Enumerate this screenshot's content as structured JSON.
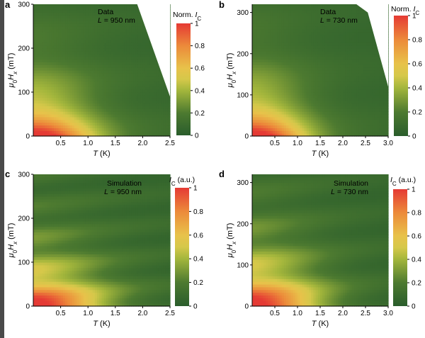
{
  "chart_data": [
    {
      "type": "heatmap",
      "panel": "a",
      "annotation": [
        "Data",
        "L = 950 nm"
      ],
      "xlabel": "T (K)",
      "ylabel": "μ0Hx (mT)",
      "xlim": [
        0,
        2.5
      ],
      "ylim": [
        0,
        300
      ],
      "xticks": [
        "0.5",
        "1.0",
        "1.5",
        "2.0",
        "2.5"
      ],
      "yticks": [
        "0",
        "100",
        "200",
        "300"
      ],
      "colorbar": {
        "title": "Norm. IC",
        "range": [
          0,
          1
        ],
        "ticks": [
          "0",
          "0.2",
          "0.4",
          "0.6",
          "0.8",
          "1"
        ]
      },
      "model": {
        "t_scale": 1.1,
        "h_scale": 80,
        "fringe_period": 120,
        "fringe_amp": 0.15
      },
      "missing_region": [
        [
          1.9,
          300
        ],
        [
          2.5,
          90
        ],
        [
          2.5,
          300
        ]
      ]
    },
    {
      "type": "heatmap",
      "panel": "b",
      "annotation": [
        "Data",
        "L = 730 nm"
      ],
      "xlabel": "T (K)",
      "ylabel": "μ0Hx (mT)",
      "xlim": [
        0,
        3.0
      ],
      "ylim": [
        0,
        320
      ],
      "xticks": [
        "0.5",
        "1.0",
        "1.5",
        "2.0",
        "2.5",
        "3.0"
      ],
      "yticks": [
        "0",
        "100",
        "200",
        "300"
      ],
      "colorbar": {
        "title": "Norm. IC",
        "range": [
          0,
          1
        ],
        "ticks": [
          "0",
          "0.2",
          "0.4",
          "0.6",
          "0.8",
          "1"
        ]
      },
      "model": {
        "t_scale": 1.2,
        "h_scale": 85,
        "fringe_period": 140,
        "fringe_amp": 0.15
      },
      "missing_region": [
        [
          2.3,
          320
        ],
        [
          2.55,
          300
        ],
        [
          3.0,
          120
        ],
        [
          3.0,
          320
        ]
      ]
    },
    {
      "type": "heatmap",
      "panel": "c",
      "annotation": [
        "Simulation",
        "L = 950 nm"
      ],
      "xlabel": "T (K)",
      "ylabel": "μ0Hx (mT)",
      "xlim": [
        0,
        2.5
      ],
      "ylim": [
        0,
        300
      ],
      "xticks": [
        "0.5",
        "1.0",
        "1.5",
        "2.0",
        "2.5"
      ],
      "yticks": [
        "0",
        "100",
        "200",
        "300"
      ],
      "colorbar": {
        "title": "IC (a.u.)",
        "range": [
          0,
          1
        ],
        "ticks": [
          "0",
          "0.2",
          "0.4",
          "0.6",
          "0.8",
          "1"
        ]
      },
      "model": {
        "t_scale": 1.3,
        "h_scale": 75,
        "fringe_period": 70,
        "fringe_amp": 0.35,
        "fringe_shift": 20
      },
      "missing_region": []
    },
    {
      "type": "heatmap",
      "panel": "d",
      "annotation": [
        "Simulation",
        "L = 730 nm"
      ],
      "xlabel": "T (K)",
      "ylabel": "μ0Hx (mT)",
      "xlim": [
        0,
        3.0
      ],
      "ylim": [
        0,
        320
      ],
      "xticks": [
        "0.5",
        "1.0",
        "1.5",
        "2.0",
        "2.5",
        "3.0"
      ],
      "yticks": [
        "0",
        "100",
        "200",
        "300"
      ],
      "colorbar": {
        "title": "IC (a.u.)",
        "range": [
          0,
          1
        ],
        "ticks": [
          "0",
          "0.2",
          "0.4",
          "0.6",
          "0.8",
          "1"
        ]
      },
      "model": {
        "t_scale": 1.5,
        "h_scale": 90,
        "fringe_period": 85,
        "fringe_amp": 0.35,
        "fringe_shift": 25
      },
      "missing_region": []
    }
  ],
  "colormap": {
    "stops": [
      [
        0.0,
        "#2a5d2c"
      ],
      [
        0.2,
        "#4d7a30"
      ],
      [
        0.4,
        "#a3b63c"
      ],
      [
        0.5,
        "#d5c84a"
      ],
      [
        0.6,
        "#e8c24a"
      ],
      [
        0.8,
        "#ec8a3a"
      ],
      [
        1.0,
        "#e53a34"
      ]
    ]
  }
}
